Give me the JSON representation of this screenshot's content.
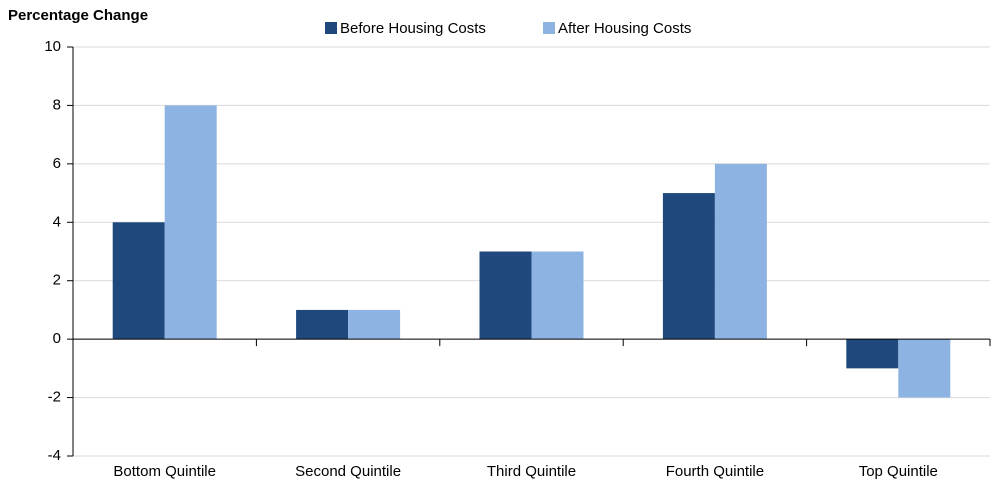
{
  "chart_data": {
    "type": "bar",
    "title": "Percentage Change",
    "categories": [
      "Bottom Quintile",
      "Second Quintile",
      "Third Quintile",
      "Fourth Quintile",
      "Top Quintile"
    ],
    "series": [
      {
        "name": "Before Housing Costs",
        "color": "#1f497d",
        "values": [
          4,
          1,
          3,
          5,
          -1
        ]
      },
      {
        "name": "After Housing Costs",
        "color": "#8db3e2",
        "values": [
          8,
          1,
          3,
          6,
          -2
        ]
      }
    ],
    "ylim": [
      -4,
      10
    ],
    "yticks": [
      -4,
      -2,
      0,
      2,
      4,
      6,
      8,
      10
    ],
    "grid": true,
    "legend": "top"
  }
}
